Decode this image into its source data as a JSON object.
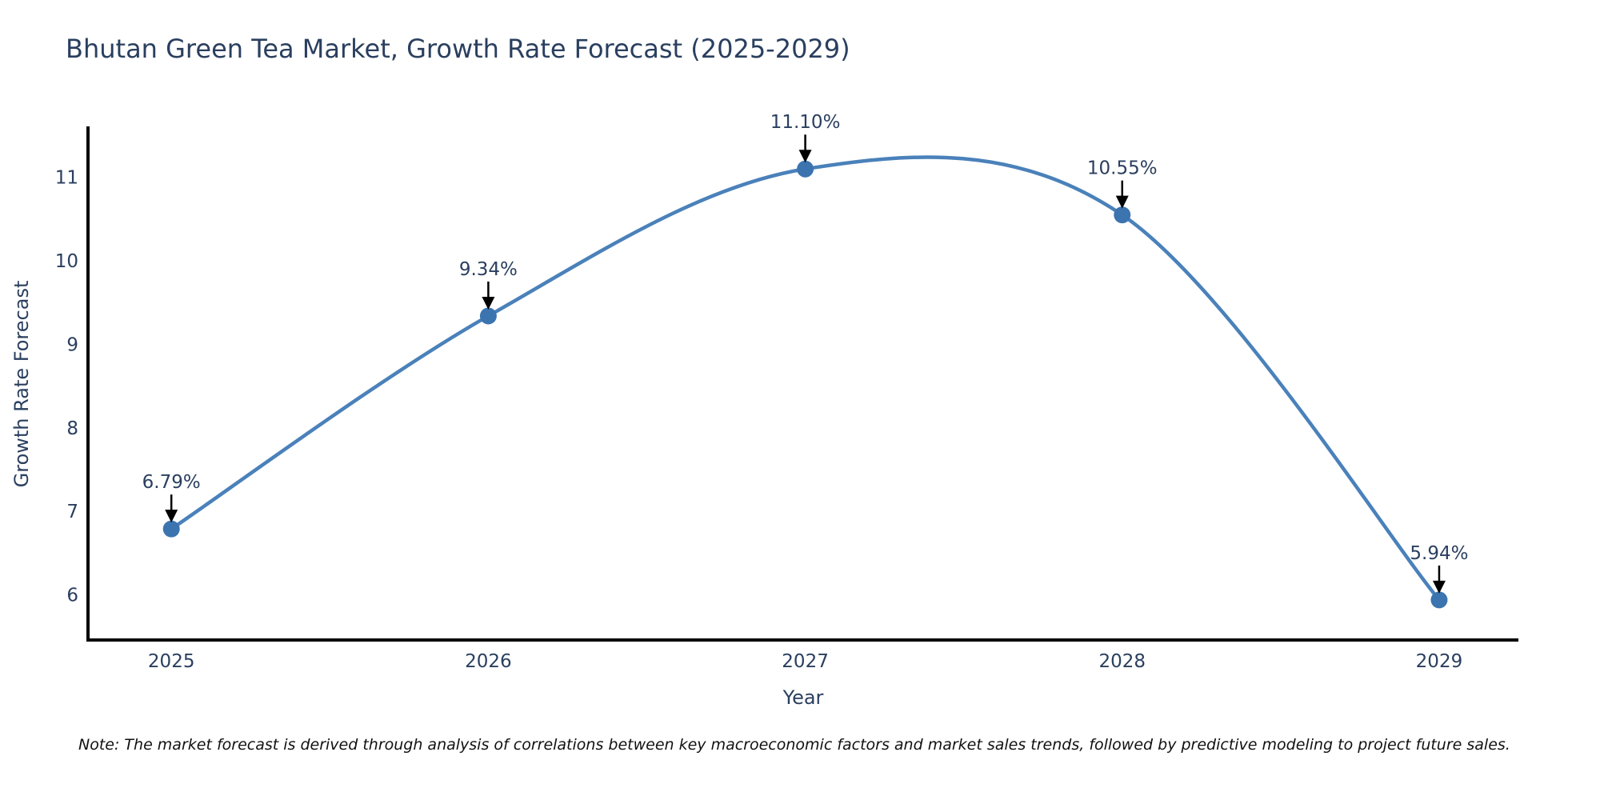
{
  "title": "Bhutan Green Tea Market, Growth Rate Forecast (2025-2029)",
  "note": "Note: The market forecast is derived through analysis of correlations between key macroeconomic factors and market sales trends, followed by predictive modeling to project future sales.",
  "chart_data": {
    "type": "line",
    "line_shape": "spline",
    "title": "Bhutan Green Tea Market, Growth Rate Forecast (2025-2029)",
    "xlabel": "Year",
    "ylabel": "Growth Rate Forecast",
    "x": [
      2025,
      2026,
      2027,
      2028,
      2029
    ],
    "values": [
      6.79,
      9.34,
      11.1,
      10.55,
      5.94
    ],
    "point_labels": [
      "6.79%",
      "9.34%",
      "11.10%",
      "10.55%",
      "5.94%"
    ],
    "xticks": [
      2025,
      2026,
      2027,
      2028,
      2029
    ],
    "yticks": [
      6,
      7,
      8,
      9,
      10,
      11
    ],
    "xlim": [
      2024.737,
      2029.25
    ],
    "ylim": [
      5.46,
      11.61
    ],
    "grid": false,
    "legend": "none",
    "colors": {
      "line": "#4a81ba",
      "marker": "#3b74af",
      "axis": "#000000",
      "tick_text": "#2a3f5f",
      "annotation_text": "#2a3f5f",
      "annotation_arrow": "#000000"
    }
  }
}
